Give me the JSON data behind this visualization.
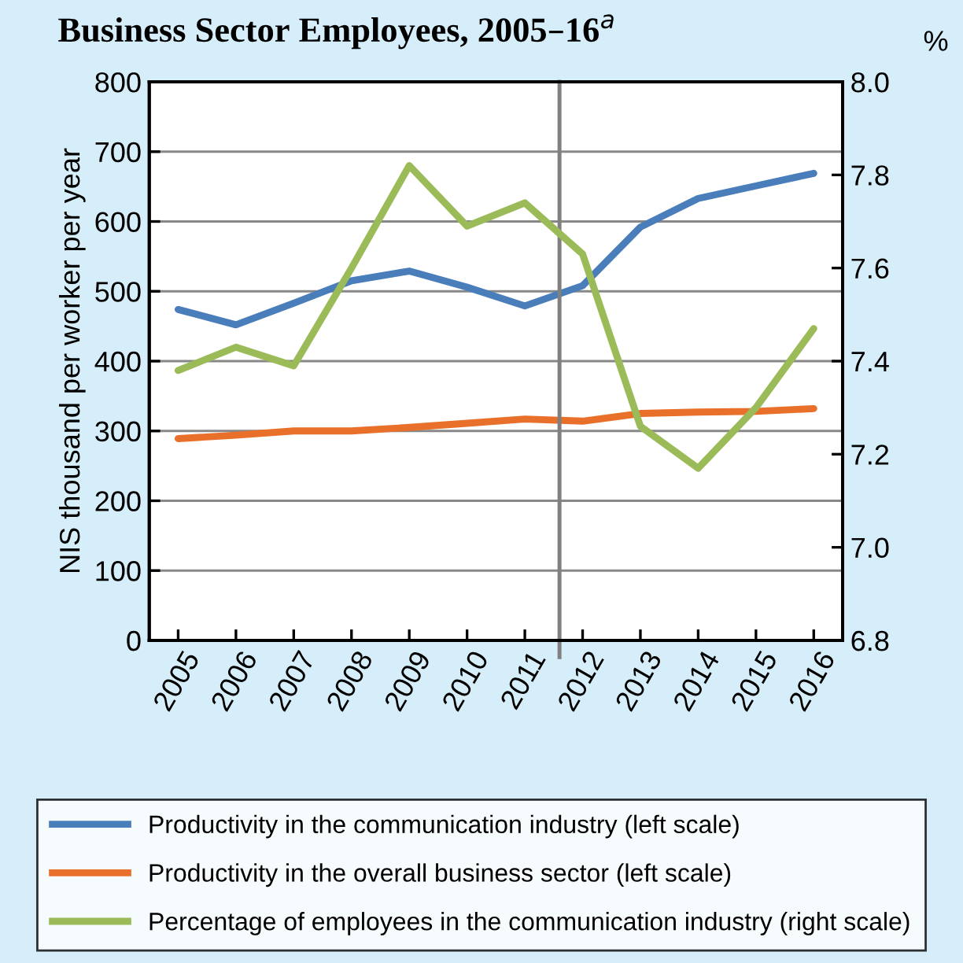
{
  "chart_data": {
    "type": "line",
    "title": "Business Sector Employees, 2005–16$^{a}$",
    "ylabel": "NIS thousand per worker per year",
    "y2label": "%",
    "x": [
      2005,
      2006,
      2007,
      2008,
      2009,
      2010,
      2011,
      2012,
      2013,
      2014,
      2015,
      2016
    ],
    "xlim": [
      2004.5,
      2016.5
    ],
    "xticks": [
      2005,
      2006,
      2007,
      2008,
      2009,
      2010,
      2011,
      2012,
      2013,
      2014,
      2015,
      2016
    ],
    "ylim": [
      0,
      800
    ],
    "yticks": [
      0,
      100,
      200,
      300,
      400,
      500,
      600,
      700,
      800
    ],
    "y2lim": [
      6.8,
      8.0
    ],
    "y2ticks": [
      {
        "value": 6.8,
        "label": "6.8"
      },
      {
        "value": 7.0,
        "label": "7.0"
      },
      {
        "value": 7.2,
        "label": "7.2"
      },
      {
        "value": 7.4,
        "label": "7.4"
      },
      {
        "value": 7.6,
        "label": "7.6"
      },
      {
        "value": 7.8,
        "label": "7.8"
      },
      {
        "value": 8.0,
        "label": "8.0"
      }
    ],
    "grid": "y",
    "legend": "bottom",
    "marker": "none",
    "line_style": "solid",
    "ref_lines": [
      {
        "axis": "x",
        "value": 2011.6,
        "color": "#808080"
      }
    ],
    "series": [
      {
        "name": "Productivity in the communication industry (left scale)",
        "color": "#4a7ebb",
        "values": [
          474,
          452,
          483,
          515,
          529,
          506,
          479,
          508,
          592,
          633,
          651,
          669
        ]
      },
      {
        "name": "Productivity in the overall business sector (left scale)",
        "color": "#e8702a",
        "values": [
          289,
          294,
          300,
          300,
          305,
          311,
          317,
          314,
          325,
          327,
          328,
          332
        ]
      },
      {
        "name": "Percentage of employees in the communication industry (right scale)",
        "color": "#9bbb59",
        "axis": "y2",
        "values": [
          7.38,
          7.43,
          7.39,
          7.6,
          7.82,
          7.69,
          7.74,
          7.63,
          7.26,
          7.17,
          7.3,
          7.47
        ]
      }
    ]
  }
}
